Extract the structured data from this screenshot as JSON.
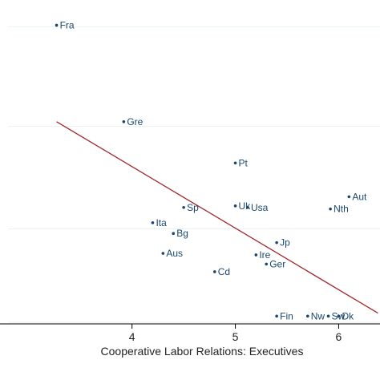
{
  "chart_data": {
    "type": "scatter",
    "title": "",
    "xlabel": "Cooperative Labor Relations: Executives",
    "ylabel": "",
    "xlim": [
      2.8,
      6.4
    ],
    "ylim": [
      0,
      1
    ],
    "grid": "horizontal",
    "x_ticks": [
      "4",
      "5",
      "6"
    ],
    "colors": {
      "marker": "#1a476f",
      "fit_line": "#a0282c",
      "grid": "#eaf2f3",
      "axis": "#000000"
    },
    "points": [
      {
        "label": "Fra",
        "x": 3.27,
        "y": 0.97
      },
      {
        "label": "Gre",
        "x": 3.92,
        "y": 0.655
      },
      {
        "label": "Pt",
        "x": 5.0,
        "y": 0.52
      },
      {
        "label": "Uk",
        "x": 5.0,
        "y": 0.38
      },
      {
        "label": "Usa",
        "x": 5.12,
        "y": 0.375
      },
      {
        "label": "Sp",
        "x": 4.5,
        "y": 0.375
      },
      {
        "label": "Aut",
        "x": 6.1,
        "y": 0.41
      },
      {
        "label": "Nth",
        "x": 5.92,
        "y": 0.37
      },
      {
        "label": "Ita",
        "x": 4.2,
        "y": 0.325
      },
      {
        "label": "Bg",
        "x": 4.4,
        "y": 0.29
      },
      {
        "label": "Jp",
        "x": 5.4,
        "y": 0.26
      },
      {
        "label": "Aus",
        "x": 4.3,
        "y": 0.225
      },
      {
        "label": "Ire",
        "x": 5.2,
        "y": 0.22
      },
      {
        "label": "Ger",
        "x": 5.3,
        "y": 0.19
      },
      {
        "label": "Cd",
        "x": 4.8,
        "y": 0.165
      },
      {
        "label": "Fin",
        "x": 5.4,
        "y": 0.02
      },
      {
        "label": "Nw",
        "x": 5.7,
        "y": 0.02
      },
      {
        "label": "Sw",
        "x": 5.9,
        "y": 0.02
      },
      {
        "label": "Dk",
        "x": 6.0,
        "y": 0.02
      }
    ],
    "fit_line": {
      "x": [
        3.27,
        6.38
      ],
      "y": [
        0.655,
        0.03
      ]
    }
  }
}
